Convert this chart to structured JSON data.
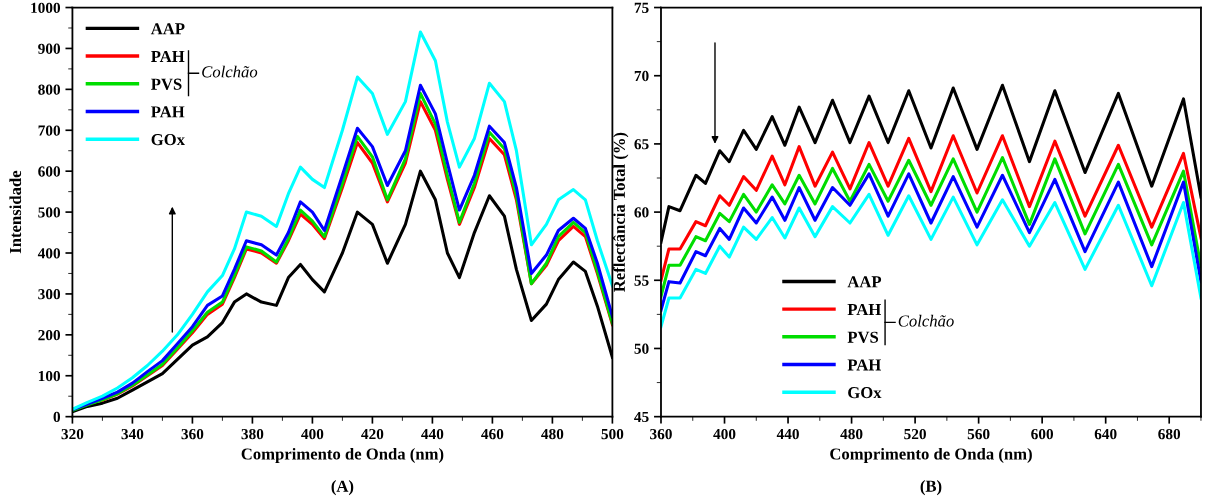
{
  "chart_data": [
    {
      "type": "line",
      "xlabel": "Comprimento de Onda (nm)",
      "ylabel": "Intensidade",
      "annotations": [
        "(A)",
        "Colchão"
      ],
      "legend": "upper left",
      "grid": false,
      "x": [
        320,
        325,
        330,
        335,
        340,
        345,
        350,
        355,
        360,
        365,
        370,
        374,
        378,
        383,
        388,
        392,
        396,
        400,
        404,
        410,
        415,
        420,
        425,
        431,
        436,
        441,
        445,
        449,
        454,
        459,
        464,
        468,
        473,
        478,
        482,
        487,
        491,
        495,
        500
      ],
      "xlim": [
        320,
        500
      ],
      "xticks": [
        320,
        340,
        360,
        380,
        400,
        420,
        440,
        460,
        480,
        500
      ],
      "ylim": [
        0,
        1000
      ],
      "yticks": [
        0,
        100,
        200,
        300,
        400,
        500,
        600,
        700,
        800,
        900,
        1000
      ],
      "series": [
        {
          "name": "AAP",
          "color": "#000000",
          "values": [
            12,
            25,
            33,
            45,
            65,
            85,
            105,
            140,
            175,
            195,
            230,
            280,
            300,
            280,
            272,
            340,
            372,
            335,
            305,
            400,
            500,
            470,
            375,
            470,
            600,
            530,
            400,
            340,
            450,
            540,
            490,
            360,
            235,
            275,
            335,
            378,
            355,
            270,
            145
          ]
        },
        {
          "name": "PAH",
          "color": "#ff0000",
          "values": [
            null,
            null,
            40,
            55,
            75,
            100,
            125,
            165,
            205,
            250,
            275,
            340,
            410,
            400,
            375,
            430,
            495,
            470,
            435,
            560,
            670,
            620,
            525,
            620,
            770,
            700,
            580,
            470,
            560,
            680,
            640,
            530,
            325,
            370,
            430,
            465,
            440,
            350,
            225
          ]
        },
        {
          "name": "PVS",
          "color": "#00dd00",
          "values": [
            15,
            29,
            41,
            56,
            77,
            102,
            128,
            168,
            210,
            255,
            280,
            345,
            415,
            405,
            378,
            435,
            505,
            478,
            440,
            570,
            685,
            635,
            530,
            630,
            790,
            715,
            590,
            475,
            570,
            695,
            655,
            540,
            325,
            375,
            440,
            475,
            450,
            355,
            228
          ]
        },
        {
          "name": "PAH",
          "color": "#0000ff",
          "values": [
            17,
            31,
            45,
            60,
            82,
            110,
            137,
            178,
            220,
            272,
            295,
            360,
            430,
            420,
            395,
            450,
            525,
            500,
            455,
            590,
            705,
            660,
            565,
            650,
            810,
            740,
            620,
            505,
            590,
            710,
            670,
            560,
            350,
            395,
            455,
            485,
            460,
            375,
            245
          ]
        },
        {
          "name": "GOx",
          "color": "#00ffff",
          "values": [
            18,
            35,
            50,
            70,
            95,
            125,
            160,
            200,
            250,
            305,
            345,
            410,
            500,
            490,
            465,
            545,
            610,
            580,
            560,
            700,
            830,
            790,
            690,
            770,
            940,
            870,
            720,
            610,
            680,
            815,
            770,
            650,
            420,
            470,
            530,
            555,
            530,
            430,
            320
          ]
        }
      ]
    },
    {
      "type": "line",
      "xlabel": "Comprimento de Onda (nm)",
      "ylabel": "Reflectância Total (%)",
      "annotations": [
        "(B)",
        "Colchão"
      ],
      "legend": "bottom left",
      "grid": false,
      "x": [
        360,
        365,
        372,
        382,
        388,
        397,
        403,
        412,
        420,
        430,
        438,
        447,
        457,
        468,
        479,
        491,
        503,
        516,
        530,
        544,
        559,
        575,
        592,
        608,
        627,
        648,
        669,
        689,
        700
      ],
      "xlim": [
        360,
        700
      ],
      "xticks": [
        360,
        400,
        440,
        480,
        520,
        560,
        600,
        640,
        680
      ],
      "ylim": [
        45,
        75
      ],
      "yticks": [
        45,
        50,
        55,
        60,
        65,
        70,
        75
      ],
      "series": [
        {
          "name": "AAP",
          "color": "#000000",
          "values": [
            57.8,
            60.4,
            60.1,
            62.7,
            62.1,
            64.5,
            63.7,
            66.0,
            64.6,
            67.0,
            64.9,
            67.7,
            65.1,
            68.2,
            65.1,
            68.5,
            65.1,
            68.9,
            64.7,
            69.1,
            64.6,
            69.3,
            63.7,
            68.9,
            62.9,
            68.7,
            61.9,
            68.3,
            61.1
          ]
        },
        {
          "name": "PAH",
          "color": "#ff0000",
          "values": [
            55.0,
            57.3,
            57.3,
            59.3,
            59.0,
            61.2,
            60.5,
            62.6,
            61.6,
            64.1,
            62.0,
            64.8,
            61.9,
            64.4,
            61.7,
            65.1,
            61.9,
            65.4,
            61.5,
            65.6,
            61.4,
            65.6,
            60.4,
            65.2,
            59.7,
            64.9,
            58.9,
            64.3,
            58.1
          ]
        },
        {
          "name": "PVS",
          "color": "#00dd00",
          "values": [
            53.8,
            56.1,
            56.1,
            58.2,
            57.9,
            59.9,
            59.3,
            61.3,
            60.0,
            62.0,
            60.6,
            62.7,
            60.6,
            63.2,
            60.8,
            63.5,
            60.8,
            63.8,
            60.5,
            63.9,
            60.0,
            64.0,
            59.1,
            63.9,
            58.4,
            63.5,
            57.6,
            63.0,
            56.0
          ]
        },
        {
          "name": "PAH",
          "color": "#0000ff",
          "values": [
            52.8,
            54.9,
            54.8,
            57.1,
            56.8,
            58.8,
            58.0,
            60.3,
            59.2,
            61.1,
            59.4,
            61.8,
            59.4,
            61.8,
            60.5,
            62.8,
            59.7,
            62.8,
            59.2,
            62.6,
            58.9,
            62.7,
            58.5,
            62.4,
            57.1,
            62.2,
            56.0,
            62.2,
            54.9
          ]
        },
        {
          "name": "GOx",
          "color": "#00ffff",
          "values": [
            51.6,
            53.7,
            53.7,
            55.8,
            55.5,
            57.5,
            56.7,
            58.9,
            58.0,
            59.6,
            58.1,
            60.3,
            58.2,
            60.4,
            59.2,
            61.3,
            58.3,
            61.2,
            58.0,
            61.1,
            57.6,
            60.9,
            57.5,
            60.7,
            55.8,
            60.5,
            54.6,
            60.7,
            53.7
          ]
        }
      ]
    }
  ]
}
